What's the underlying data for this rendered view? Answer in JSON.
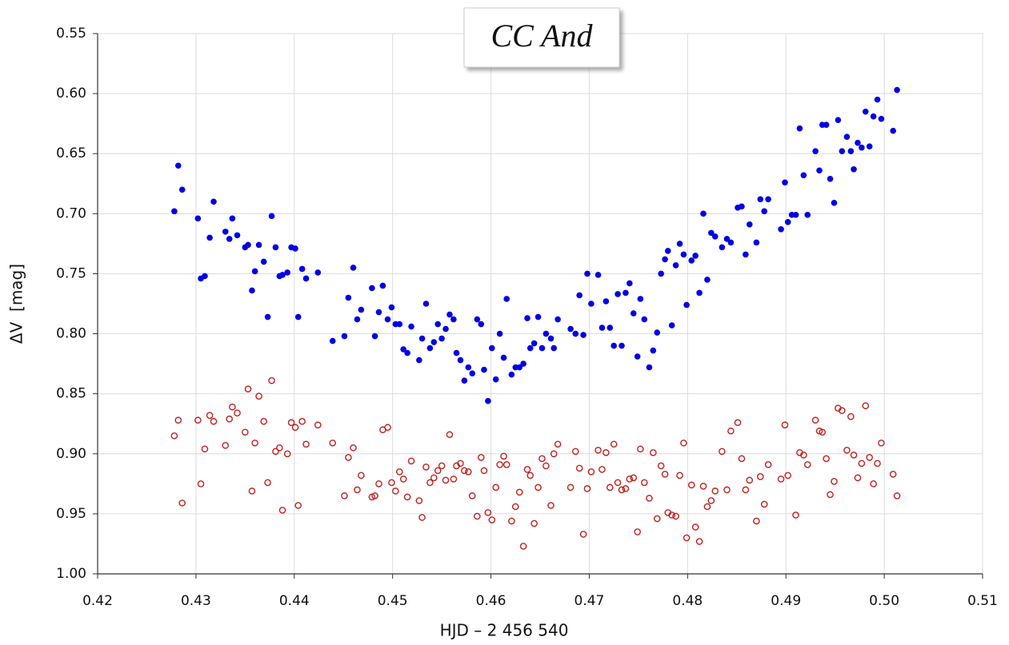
{
  "chart_data": {
    "type": "scatter",
    "title": "CC And",
    "x_label": "HJD – 2 456 540",
    "y_label": "ΔV  [mag]",
    "xlim": [
      0.42,
      0.51
    ],
    "ylim": [
      1.0,
      0.55
    ],
    "y_inverted": true,
    "grid": true,
    "xticks": [
      0.42,
      0.43,
      0.44,
      0.45,
      0.46,
      0.47,
      0.48,
      0.49,
      {
        "value": 0.5,
        "label": "0.50"
      },
      0.51
    ],
    "yticks": [
      0.55,
      {
        "value": 0.6,
        "label": "0.60"
      },
      0.65,
      {
        "value": 0.7,
        "label": "0.70"
      },
      0.75,
      {
        "value": 0.8,
        "label": "0.80"
      },
      0.85,
      {
        "value": 0.9,
        "label": "0.90"
      },
      0.95,
      {
        "value": 1.0,
        "label": "1.00"
      }
    ],
    "series": [
      {
        "color": "#0000e6",
        "marker": "filled",
        "x": [
          0.4278,
          0.4282,
          0.4286,
          0.4302,
          0.4305,
          0.4309,
          0.4314,
          0.4318,
          0.433,
          0.4334,
          0.4337,
          0.4342,
          0.435,
          0.4353,
          0.4357,
          0.436,
          0.4364,
          0.4369,
          0.4373,
          0.4377,
          0.4381,
          0.4385,
          0.4388,
          0.4393,
          0.4397,
          0.4401,
          0.4404,
          0.4408,
          0.4412,
          0.4424,
          0.4439,
          0.4451,
          0.4455,
          0.446,
          0.4464,
          0.4468,
          0.4479,
          0.4482,
          0.4486,
          0.449,
          0.4495,
          0.4499,
          0.4503,
          0.4507,
          0.4511,
          0.4515,
          0.4519,
          0.4527,
          0.453,
          0.4534,
          0.4538,
          0.4542,
          0.4546,
          0.455,
          0.4554,
          0.4558,
          0.4562,
          0.4565,
          0.4569,
          0.4573,
          0.4577,
          0.4581,
          0.4586,
          0.459,
          0.4593,
          0.4597,
          0.4601,
          0.4605,
          0.4609,
          0.4613,
          0.4616,
          0.4621,
          0.4625,
          0.4629,
          0.4633,
          0.4637,
          0.464,
          0.4644,
          0.4648,
          0.4652,
          0.4656,
          0.4661,
          0.4664,
          0.4668,
          0.4681,
          0.4686,
          0.469,
          0.4694,
          0.4698,
          0.4702,
          0.4709,
          0.4713,
          0.4717,
          0.4721,
          0.4725,
          0.4729,
          0.4733,
          0.4737,
          0.4741,
          0.4745,
          0.4749,
          0.4752,
          0.4756,
          0.4761,
          0.4765,
          0.4769,
          0.4773,
          0.4777,
          0.478,
          0.4784,
          0.4788,
          0.4792,
          0.4796,
          0.4799,
          0.4804,
          0.4808,
          0.4812,
          0.4816,
          0.482,
          0.4824,
          0.4828,
          0.4835,
          0.484,
          0.4844,
          0.4851,
          0.4855,
          0.4859,
          0.4863,
          0.487,
          0.4874,
          0.4878,
          0.4882,
          0.4895,
          0.4899,
          0.4902,
          0.4906,
          0.491,
          0.4914,
          0.4918,
          0.4922,
          0.493,
          0.4934,
          0.4937,
          0.4941,
          0.4945,
          0.4949,
          0.4953,
          0.4957,
          0.4962,
          0.4966,
          0.4969,
          0.4973,
          0.4977,
          0.4981,
          0.4985,
          0.4989,
          0.4993,
          0.4997,
          0.5009,
          0.5013
        ],
        "values": [
          0.698,
          0.66,
          0.68,
          0.704,
          0.754,
          0.752,
          0.72,
          0.69,
          0.715,
          0.721,
          0.704,
          0.718,
          0.728,
          0.726,
          0.764,
          0.748,
          0.726,
          0.74,
          0.786,
          0.702,
          0.728,
          0.752,
          0.751,
          0.749,
          0.728,
          0.729,
          0.786,
          0.746,
          0.754,
          0.749,
          0.806,
          0.802,
          0.77,
          0.745,
          0.788,
          0.78,
          0.762,
          0.802,
          0.782,
          0.76,
          0.788,
          0.778,
          0.792,
          0.792,
          0.813,
          0.816,
          0.794,
          0.822,
          0.804,
          0.775,
          0.812,
          0.807,
          0.792,
          0.804,
          0.796,
          0.784,
          0.788,
          0.816,
          0.822,
          0.839,
          0.828,
          0.833,
          0.788,
          0.792,
          0.83,
          0.856,
          0.812,
          0.838,
          0.8,
          0.82,
          0.771,
          0.834,
          0.828,
          0.828,
          0.825,
          0.787,
          0.812,
          0.808,
          0.786,
          0.812,
          0.8,
          0.804,
          0.812,
          0.788,
          0.796,
          0.8,
          0.768,
          0.801,
          0.75,
          0.775,
          0.751,
          0.795,
          0.773,
          0.795,
          0.81,
          0.767,
          0.81,
          0.766,
          0.758,
          0.783,
          0.819,
          0.771,
          0.788,
          0.828,
          0.814,
          0.799,
          0.75,
          0.738,
          0.731,
          0.793,
          0.743,
          0.725,
          0.734,
          0.776,
          0.739,
          0.735,
          0.766,
          0.7,
          0.755,
          0.716,
          0.719,
          0.728,
          0.721,
          0.724,
          0.695,
          0.694,
          0.734,
          0.709,
          0.724,
          0.688,
          0.698,
          0.688,
          0.713,
          0.674,
          0.707,
          0.701,
          0.701,
          0.629,
          0.668,
          0.701,
          0.648,
          0.664,
          0.626,
          0.626,
          0.671,
          0.691,
          0.622,
          0.648,
          0.636,
          0.648,
          0.663,
          0.641,
          0.645,
          0.615,
          0.644,
          0.619,
          0.605,
          0.621,
          0.631,
          0.597
        ]
      },
      {
        "color": "#c0201c",
        "marker": "open",
        "x": [
          0.4278,
          0.4282,
          0.4286,
          0.4302,
          0.4305,
          0.4309,
          0.4314,
          0.4318,
          0.433,
          0.4334,
          0.4337,
          0.4342,
          0.435,
          0.4353,
          0.4357,
          0.436,
          0.4364,
          0.4369,
          0.4373,
          0.4377,
          0.4381,
          0.4385,
          0.4388,
          0.4393,
          0.4397,
          0.4401,
          0.4404,
          0.4408,
          0.4412,
          0.4424,
          0.4439,
          0.4451,
          0.4455,
          0.446,
          0.4464,
          0.4468,
          0.4479,
          0.4482,
          0.4486,
          0.449,
          0.4495,
          0.4499,
          0.4503,
          0.4507,
          0.4511,
          0.4515,
          0.4519,
          0.4527,
          0.453,
          0.4534,
          0.4538,
          0.4542,
          0.4546,
          0.455,
          0.4554,
          0.4558,
          0.4562,
          0.4565,
          0.4569,
          0.4573,
          0.4577,
          0.4581,
          0.4586,
          0.459,
          0.4593,
          0.4597,
          0.4601,
          0.4605,
          0.4609,
          0.4613,
          0.4616,
          0.4621,
          0.4625,
          0.4629,
          0.4633,
          0.4637,
          0.464,
          0.4644,
          0.4648,
          0.4652,
          0.4656,
          0.4661,
          0.4664,
          0.4668,
          0.4681,
          0.4686,
          0.469,
          0.4694,
          0.4698,
          0.4702,
          0.4709,
          0.4713,
          0.4717,
          0.4721,
          0.4725,
          0.4729,
          0.4733,
          0.4737,
          0.4741,
          0.4745,
          0.4749,
          0.4752,
          0.4756,
          0.4761,
          0.4765,
          0.4769,
          0.4773,
          0.4777,
          0.478,
          0.4784,
          0.4788,
          0.4792,
          0.4796,
          0.4799,
          0.4804,
          0.4808,
          0.4812,
          0.4816,
          0.482,
          0.4824,
          0.4828,
          0.4835,
          0.484,
          0.4844,
          0.4851,
          0.4855,
          0.4859,
          0.4863,
          0.487,
          0.4874,
          0.4878,
          0.4882,
          0.4895,
          0.4899,
          0.4902,
          0.491,
          0.4914,
          0.4918,
          0.4922,
          0.493,
          0.4934,
          0.4937,
          0.4941,
          0.4945,
          0.4949,
          0.4953,
          0.4957,
          0.4962,
          0.4966,
          0.4969,
          0.4973,
          0.4977,
          0.4981,
          0.4985,
          0.4989,
          0.4993,
          0.4997,
          0.5009,
          0.5013
        ],
        "values": [
          0.885,
          0.872,
          0.941,
          0.872,
          0.925,
          0.896,
          0.868,
          0.873,
          0.893,
          0.871,
          0.861,
          0.866,
          0.882,
          0.846,
          0.931,
          0.891,
          0.852,
          0.873,
          0.924,
          0.839,
          0.898,
          0.895,
          0.947,
          0.9,
          0.874,
          0.878,
          0.943,
          0.873,
          0.892,
          0.876,
          0.891,
          0.935,
          0.903,
          0.895,
          0.93,
          0.918,
          0.936,
          0.935,
          0.925,
          0.88,
          0.878,
          0.924,
          0.931,
          0.915,
          0.921,
          0.936,
          0.906,
          0.939,
          0.953,
          0.911,
          0.924,
          0.92,
          0.914,
          0.91,
          0.922,
          0.884,
          0.921,
          0.91,
          0.908,
          0.914,
          0.915,
          0.935,
          0.952,
          0.903,
          0.914,
          0.949,
          0.955,
          0.928,
          0.909,
          0.902,
          0.909,
          0.956,
          0.944,
          0.932,
          0.977,
          0.913,
          0.918,
          0.958,
          0.928,
          0.904,
          0.91,
          0.943,
          0.9,
          0.892,
          0.928,
          0.898,
          0.912,
          0.967,
          0.929,
          0.915,
          0.897,
          0.913,
          0.899,
          0.928,
          0.892,
          0.924,
          0.93,
          0.929,
          0.921,
          0.92,
          0.965,
          0.896,
          0.924,
          0.937,
          0.899,
          0.954,
          0.91,
          0.917,
          0.949,
          0.951,
          0.952,
          0.918,
          0.891,
          0.97,
          0.926,
          0.961,
          0.973,
          0.927,
          0.944,
          0.939,
          0.931,
          0.898,
          0.93,
          0.881,
          0.874,
          0.904,
          0.93,
          0.922,
          0.956,
          0.919,
          0.942,
          0.909,
          0.921,
          0.876,
          0.918,
          0.951,
          0.899,
          0.901,
          0.909,
          0.872,
          0.881,
          0.882,
          0.904,
          0.934,
          0.923,
          0.862,
          0.864,
          0.897,
          0.869,
          0.901,
          0.92,
          0.908,
          0.86,
          0.903,
          0.925,
          0.908,
          0.891,
          0.917,
          0.935
        ]
      }
    ]
  }
}
